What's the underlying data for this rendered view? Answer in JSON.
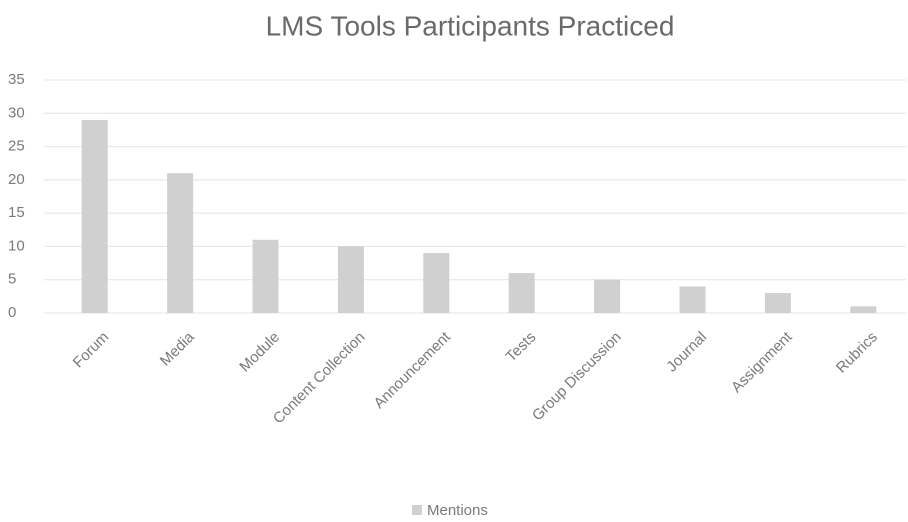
{
  "chart_data": {
    "type": "bar",
    "title": "LMS Tools Participants Practiced",
    "categories": [
      "Forum",
      "Media",
      "Module",
      "Content Collection",
      "Announcement",
      "Tests",
      "Group Discussion",
      "Journal",
      "Assignment",
      "Rubrics"
    ],
    "series": [
      {
        "name": "Mentions",
        "color": "#d0d0d0",
        "values": [
          29,
          21,
          11,
          10,
          9,
          6,
          5,
          4,
          3,
          1
        ]
      }
    ],
    "ylim": [
      0,
      35
    ],
    "yticks": [
      0,
      5,
      10,
      15,
      20,
      25,
      30,
      35
    ],
    "grid": true,
    "legend": "bottom"
  }
}
